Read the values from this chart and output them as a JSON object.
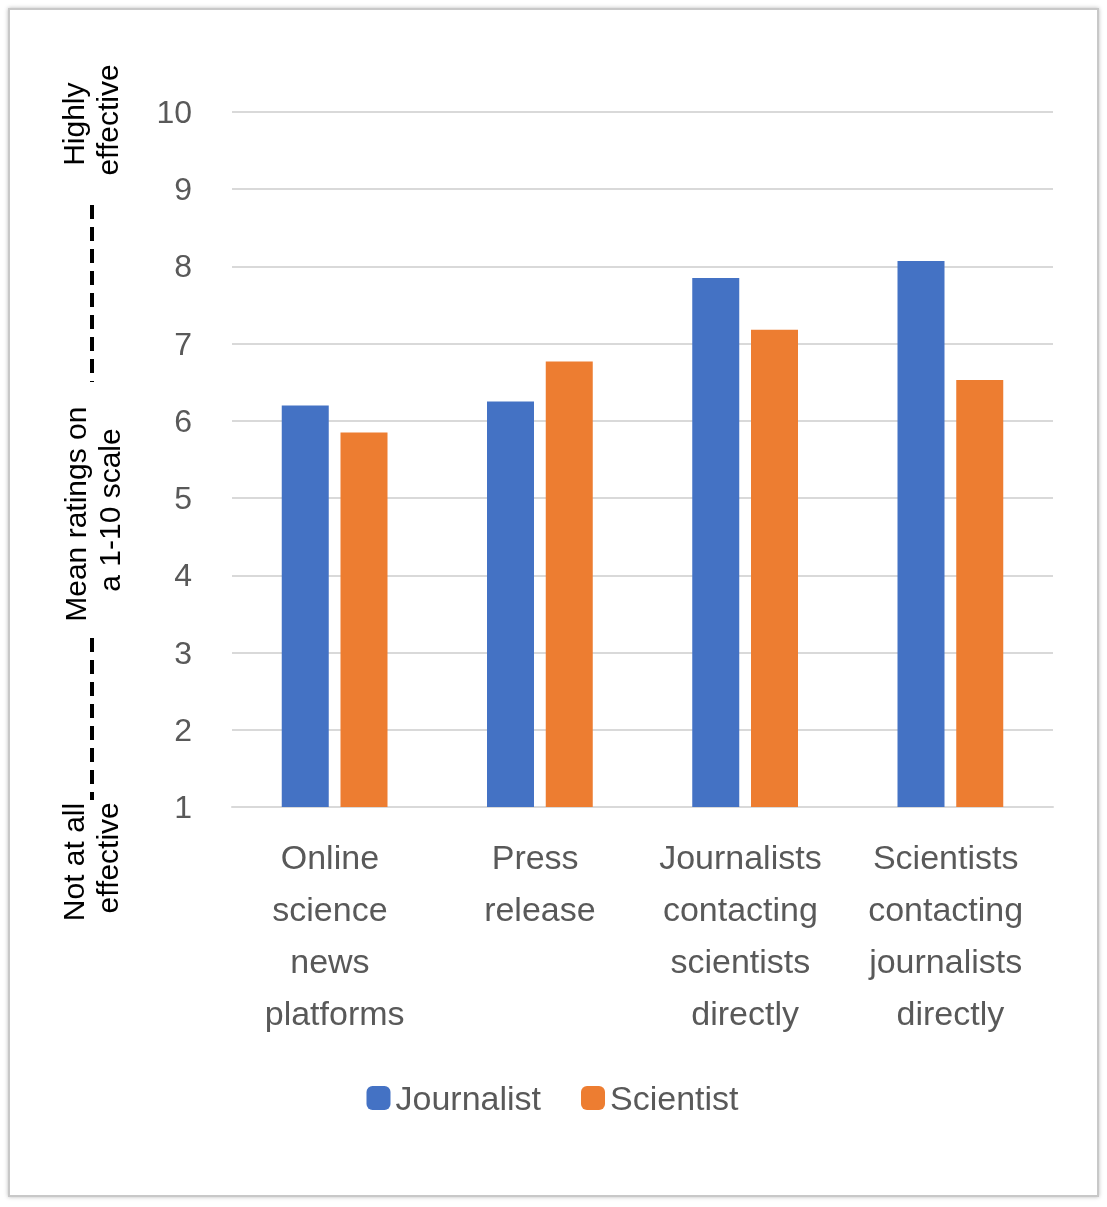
{
  "chart_data": {
    "type": "bar",
    "ylabel": "Mean ratings on a 1-10 scale",
    "annotations": [
      "Highly effective",
      "Not at all effective"
    ],
    "categories": [
      "Online science news platforms",
      "Press release",
      "Journalists contacting scientists directly",
      "Scientists contacting journalists directly"
    ],
    "series": [
      {
        "name": "Journalist",
        "color": "#4472c4",
        "values": [
          6.2,
          6.25,
          7.85,
          8.07
        ]
      },
      {
        "name": "Scientist",
        "color": "#ed7d31",
        "values": [
          5.85,
          6.77,
          7.18,
          6.53
        ]
      }
    ],
    "ylim": [
      1,
      10
    ],
    "yticks": [
      1,
      2,
      3,
      4,
      5,
      6,
      7,
      8,
      9,
      10
    ],
    "grid": "y",
    "legend": "bottom"
  }
}
